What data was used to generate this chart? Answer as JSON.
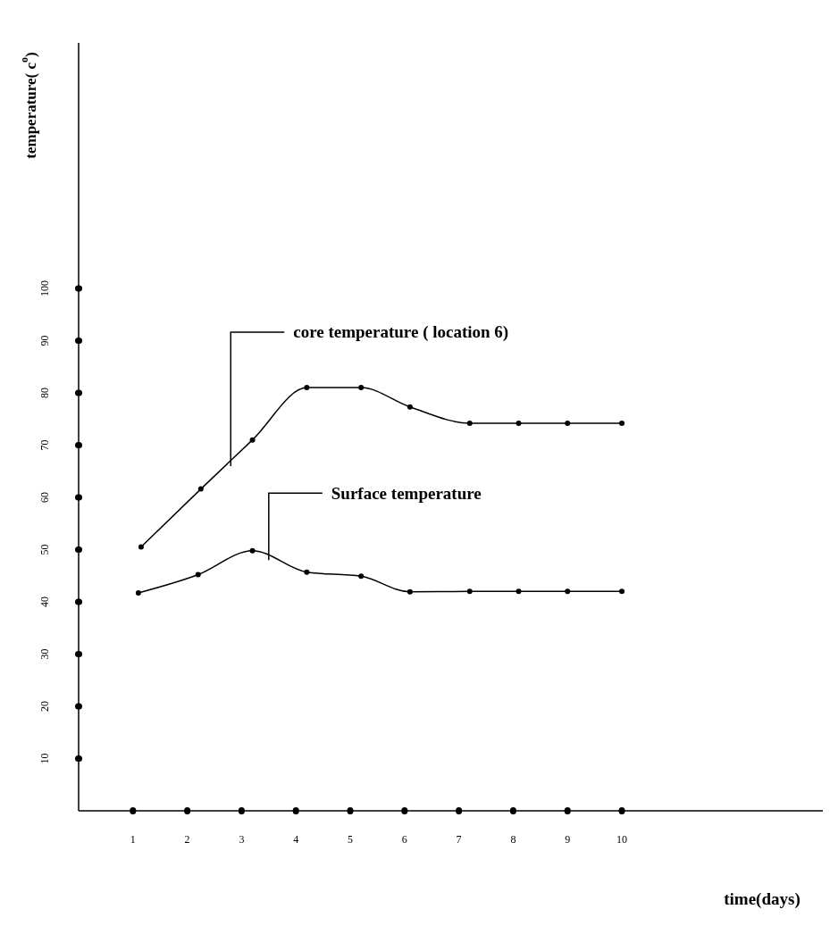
{
  "chart_data": {
    "type": "line",
    "xlabel": "time(days)",
    "ylabel": "temperature( c$^{o}$)",
    "xlim": [
      0,
      13.7
    ],
    "xticks": [
      1,
      2,
      3,
      4,
      5,
      6,
      7,
      8,
      9,
      10
    ],
    "ylim": [
      0,
      147
    ],
    "yticks": [
      10,
      20,
      30,
      40,
      50,
      60,
      70,
      80,
      90,
      100
    ],
    "marker": "circle",
    "line_style": "solid",
    "grid": false,
    "legend": false,
    "series": [
      {
        "color": "#000000",
        "x": [
          1.15,
          2.25,
          3.2,
          4.2,
          5.2,
          6.1,
          7.2,
          8.1,
          9,
          10
        ],
        "values": [
          50.5,
          61.6,
          71,
          81,
          81,
          77.3,
          74.2,
          74.2,
          74.2,
          74.2
        ]
      },
      {
        "color": "#000000",
        "x": [
          1.1,
          2.2,
          3.2,
          4.2,
          5.2,
          6.1,
          7.2,
          8.1,
          9,
          10
        ],
        "values": [
          41.7,
          45.2,
          49.8,
          45.7,
          44.9,
          41.9,
          42,
          42,
          42,
          42
        ]
      }
    ],
    "annotations": [
      {
        "text": "core temperature ( location 6)",
        "x": 2.8,
        "y": 66
      },
      {
        "text": "Surface temperature",
        "x": 3.5,
        "y": 48
      }
    ]
  }
}
